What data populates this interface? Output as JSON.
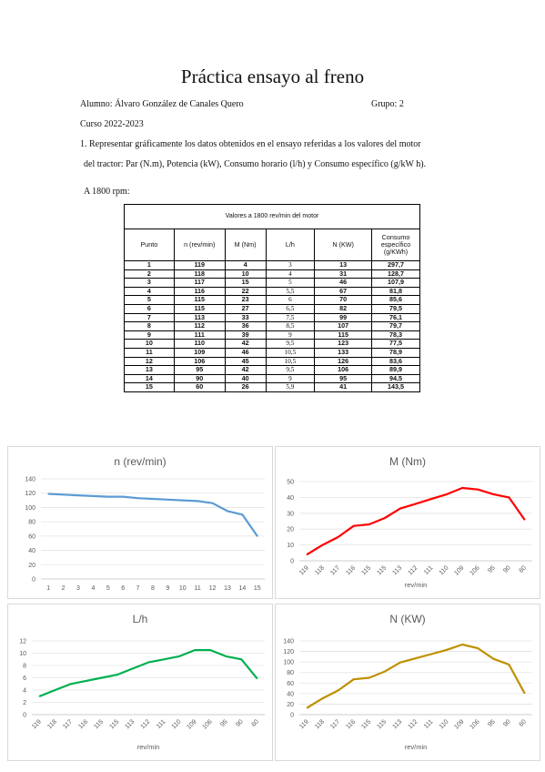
{
  "header": {
    "title": "Práctica ensayo al freno",
    "student": "Alumno: Álvaro González de Canales Quero",
    "group": "Grupo: 2",
    "course": "Curso 2022-2023",
    "task_line1": "1. Representar gráficamente los datos obtenidos en el ensayo referidas a los valores del motor",
    "task_line2": "del tractor: Par (N.m), Potencia (kW), Consumo horario (l/h) y Consumo específico (g/kW h).",
    "rpm": "A 1800 rpm:"
  },
  "table": {
    "caption": "Valores a 1800 rev/min del motor",
    "headers": [
      "Punto",
      "n (rev/min)",
      "M (Nm)",
      "L/h",
      "N (KW)",
      "Consumo específico (g/KWh)"
    ],
    "rows": [
      [
        "1",
        "119",
        "4",
        "3",
        "13",
        "297,7"
      ],
      [
        "2",
        "118",
        "10",
        "4",
        "31",
        "128,7"
      ],
      [
        "3",
        "117",
        "15",
        "5",
        "46",
        "107,9"
      ],
      [
        "4",
        "116",
        "22",
        "5,5",
        "67",
        "81,8"
      ],
      [
        "5",
        "115",
        "23",
        "6",
        "70",
        "85,6"
      ],
      [
        "6",
        "115",
        "27",
        "6,5",
        "82",
        "79,5"
      ],
      [
        "7",
        "113",
        "33",
        "7,5",
        "99",
        "76,1"
      ],
      [
        "8",
        "112",
        "36",
        "8,5",
        "107",
        "79,7"
      ],
      [
        "9",
        "111",
        "39",
        "9",
        "115",
        "78,3"
      ],
      [
        "10",
        "110",
        "42",
        "9,5",
        "123",
        "77,5"
      ],
      [
        "11",
        "109",
        "46",
        "10,5",
        "133",
        "78,9"
      ],
      [
        "12",
        "106",
        "45",
        "10,5",
        "126",
        "83,6"
      ],
      [
        "13",
        "95",
        "42",
        "9,5",
        "106",
        "89,9"
      ],
      [
        "14",
        "90",
        "40",
        "9",
        "95",
        "94,5"
      ],
      [
        "15",
        "60",
        "26",
        "5,9",
        "41",
        "143,5"
      ]
    ]
  },
  "chart_data": [
    {
      "type": "line",
      "title": "n (rev/min)",
      "xlabel": "",
      "categories": [
        "1",
        "2",
        "3",
        "4",
        "5",
        "6",
        "7",
        "8",
        "9",
        "10",
        "11",
        "12",
        "13",
        "14",
        "15"
      ],
      "values": [
        119,
        118,
        117,
        116,
        115,
        115,
        113,
        112,
        111,
        110,
        109,
        106,
        95,
        90,
        60
      ],
      "ylim": [
        0,
        140
      ],
      "yticks": [
        "0",
        "20",
        "40",
        "60",
        "80",
        "100",
        "120",
        "140"
      ],
      "color": "#5b9bd5",
      "grid": true
    },
    {
      "type": "line",
      "title": "M (Nm)",
      "xlabel": "rev/min",
      "categories": [
        "119",
        "118",
        "117",
        "116",
        "115",
        "115",
        "113",
        "112",
        "111",
        "110",
        "109",
        "106",
        "95",
        "90",
        "60"
      ],
      "values": [
        4,
        10,
        15,
        22,
        23,
        27,
        33,
        36,
        39,
        42,
        46,
        45,
        42,
        40,
        26
      ],
      "ylim": [
        0,
        50
      ],
      "yticks": [
        "0",
        "10",
        "20",
        "30",
        "40",
        "50"
      ],
      "color": "#ff0000",
      "grid": true
    },
    {
      "type": "line",
      "title": "L/h",
      "xlabel": "rev/min",
      "categories": [
        "119",
        "118",
        "117",
        "116",
        "115",
        "115",
        "113",
        "112",
        "111",
        "110",
        "109",
        "106",
        "95",
        "90",
        "60"
      ],
      "values": [
        3,
        4,
        5,
        5.5,
        6,
        6.5,
        7.5,
        8.5,
        9,
        9.5,
        10.5,
        10.5,
        9.5,
        9,
        5.9
      ],
      "ylim": [
        0,
        12
      ],
      "yticks": [
        "0",
        "2",
        "4",
        "6",
        "8",
        "10",
        "12"
      ],
      "color": "#00b050",
      "grid": true
    },
    {
      "type": "line",
      "title": "N (KW)",
      "xlabel": "rev/min",
      "categories": [
        "119",
        "118",
        "117",
        "116",
        "115",
        "115",
        "113",
        "112",
        "111",
        "110",
        "109",
        "106",
        "95",
        "90",
        "60"
      ],
      "values": [
        13,
        31,
        46,
        67,
        70,
        82,
        99,
        107,
        115,
        123,
        133,
        126,
        106,
        95,
        41
      ],
      "ylim": [
        0,
        140
      ],
      "yticks": [
        "0",
        "20",
        "40",
        "60",
        "80",
        "100",
        "120",
        "140"
      ],
      "color": "#bf9000",
      "grid": true
    }
  ]
}
